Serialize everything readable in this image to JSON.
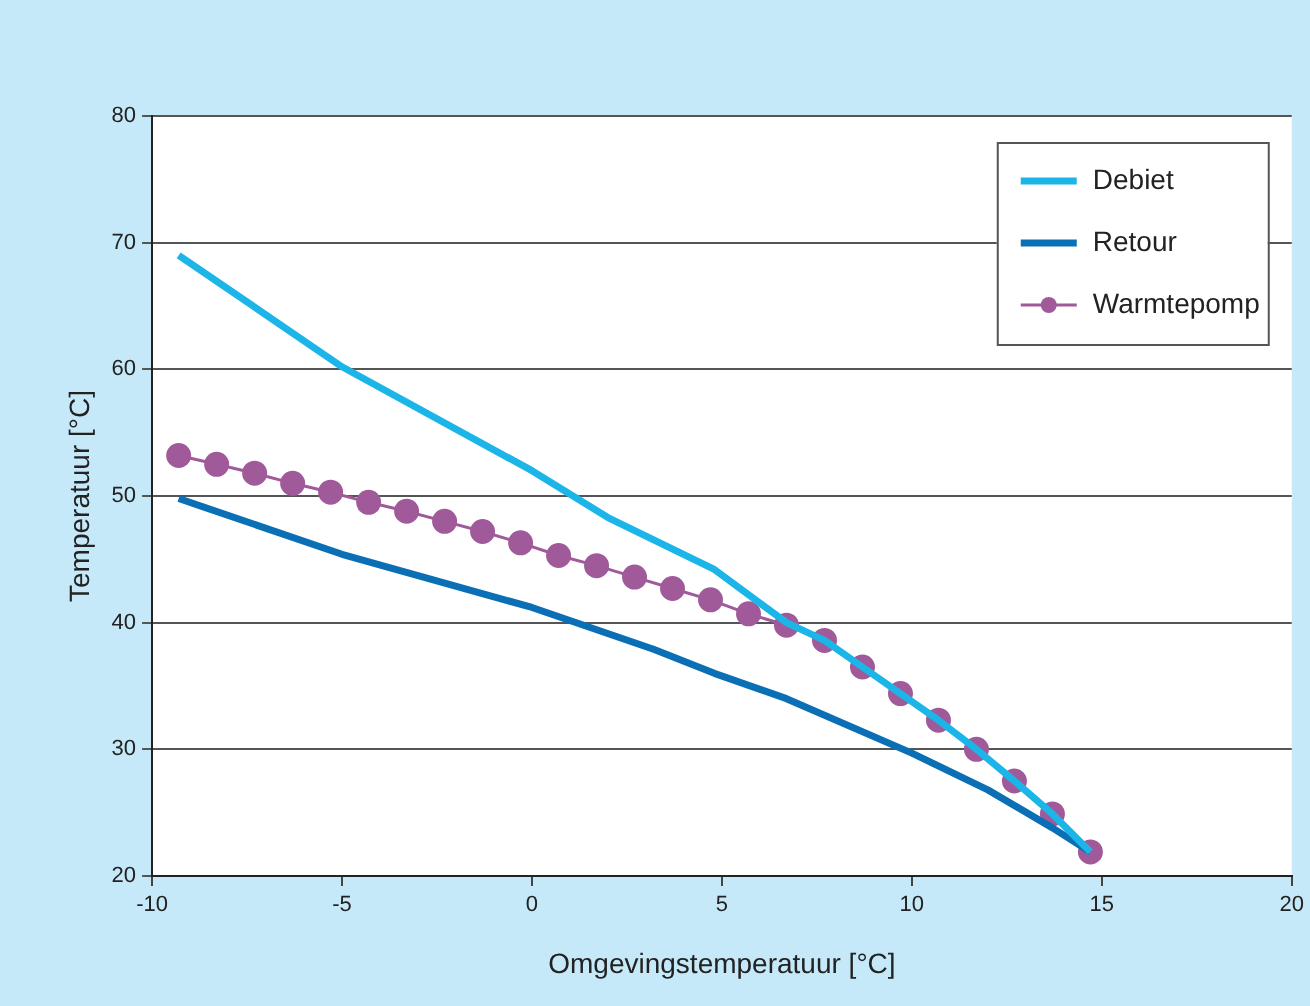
{
  "chart_data": {
    "type": "line",
    "xlabel": "Omgevingstemperatuur [°C]",
    "ylabel": "Temperatuur [°C]",
    "xlim": [
      -10,
      20
    ],
    "xticks": [
      -10,
      -5,
      0,
      5,
      10,
      15,
      20
    ],
    "ylim": [
      20,
      80
    ],
    "yticks": [
      20,
      30,
      40,
      50,
      60,
      70,
      80
    ],
    "grid": "y",
    "legend": "top right",
    "series": [
      {
        "name": "Debiet",
        "color": "#1cb5e8",
        "marker": "none",
        "x": [
          -9.3,
          -5,
          0,
          2,
          4.8,
          6.7,
          7.7,
          8.7,
          9.7,
          10.7,
          11.7,
          12.7,
          13.7,
          14.7
        ],
        "values": [
          69,
          60.2,
          52.0,
          48.3,
          44.2,
          40.0,
          38.6,
          36.5,
          34.4,
          32.3,
          30.0,
          27.5,
          24.9,
          21.9
        ]
      },
      {
        "name": "Retour",
        "color": "#0a6fb5",
        "marker": "none",
        "x": [
          -9.3,
          -5,
          0,
          3.2,
          4.8,
          6.7,
          10,
          12,
          13.7,
          14.7
        ],
        "values": [
          49.8,
          45.4,
          41.2,
          37.9,
          36.0,
          34.0,
          29.7,
          26.8,
          23.8,
          21.9
        ]
      },
      {
        "name": "Warmtepomp",
        "color": "#a05a9a",
        "marker": "circle",
        "x": [
          -9.3,
          -8.3,
          -7.3,
          -6.3,
          -5.3,
          -4.3,
          -3.3,
          -2.3,
          -1.3,
          -0.3,
          0.7,
          1.7,
          2.7,
          3.7,
          4.7,
          5.7,
          6.7,
          7.7,
          8.7,
          9.7,
          10.7,
          11.7,
          12.7,
          13.7,
          14.7
        ],
        "values": [
          53.2,
          52.5,
          51.8,
          51.0,
          50.3,
          49.5,
          48.8,
          48.0,
          47.2,
          46.3,
          45.3,
          44.5,
          43.6,
          42.7,
          41.8,
          40.7,
          39.8,
          38.6,
          36.5,
          34.4,
          32.3,
          30.0,
          27.5,
          24.9,
          21.9
        ]
      }
    ]
  }
}
